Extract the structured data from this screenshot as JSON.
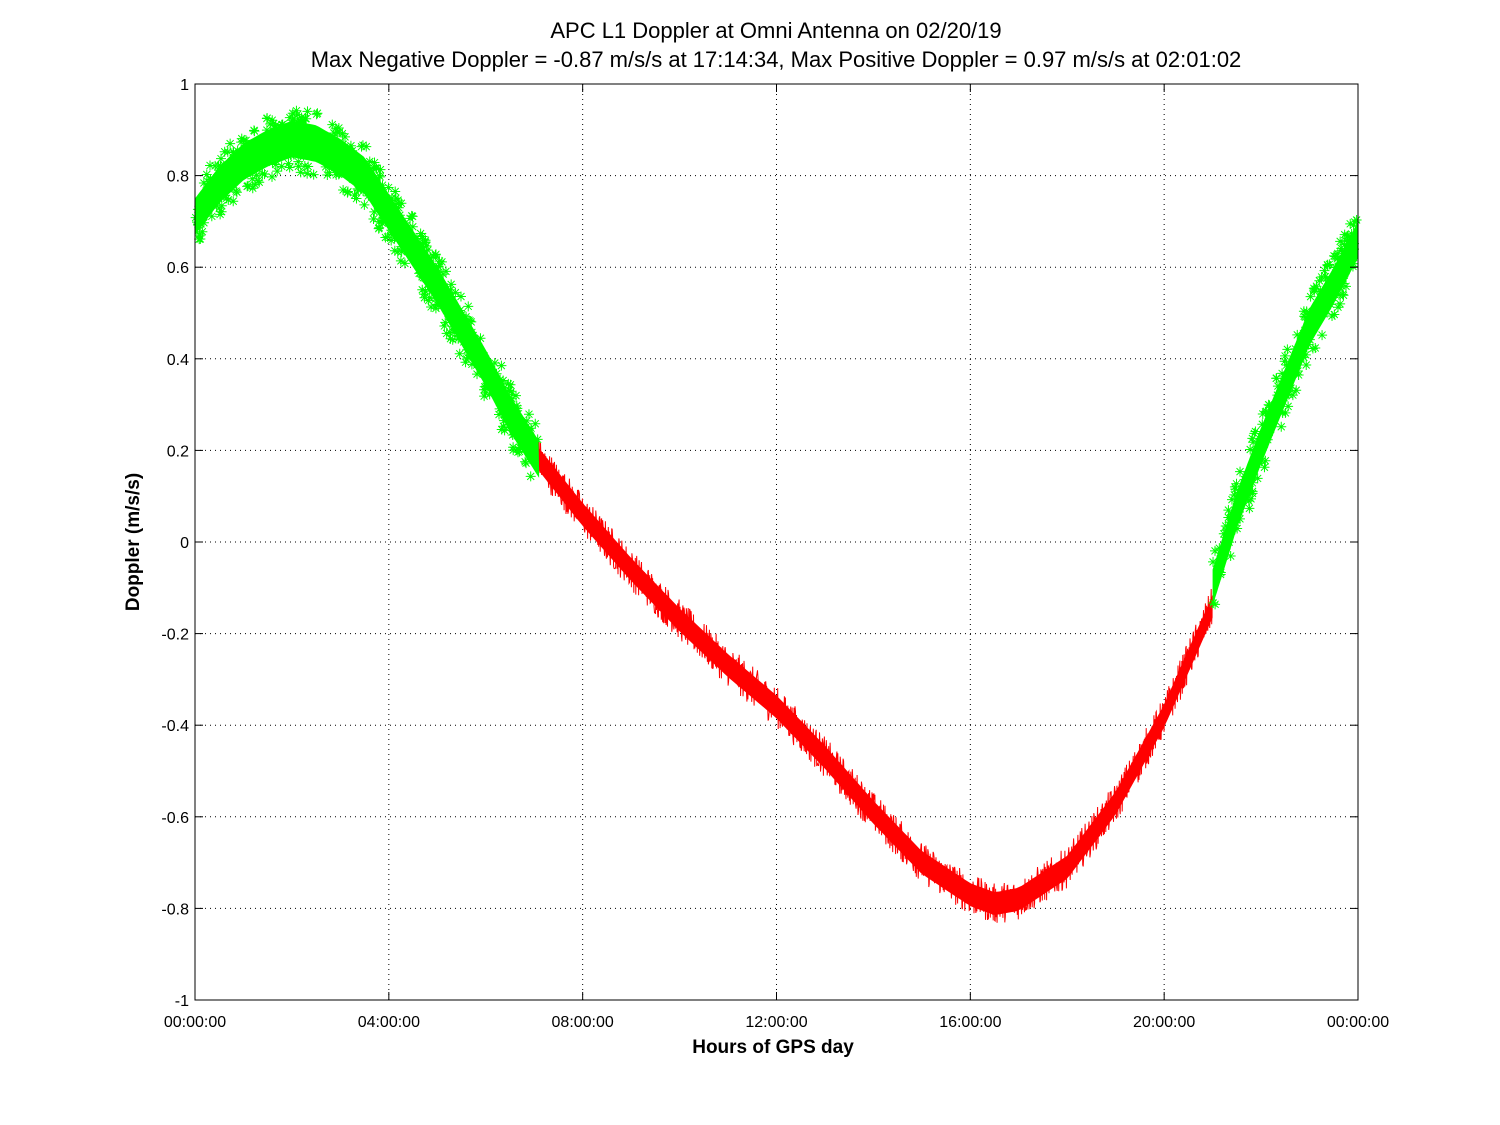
{
  "chart_data": {
    "type": "scatter",
    "title": "APC  L1 Doppler at Omni Antenna on 02/20/19",
    "subtitle": "Max Negative Doppler = -0.87 m/s/s  at 17:14:34,   Max Positive Doppler = 0.97 m/s/s  at 02:01:02",
    "xlabel": "Hours of GPS day",
    "ylabel": "Doppler (m/s/s)",
    "xlim": [
      0,
      24
    ],
    "ylim": [
      -1,
      1
    ],
    "grid": true,
    "x_ticks": [
      0,
      4,
      8,
      12,
      16,
      20,
      24
    ],
    "x_tick_labels": [
      "00:00:00",
      "04:00:00",
      "08:00:00",
      "12:00:00",
      "16:00:00",
      "20:00:00",
      "00:00:00"
    ],
    "y_ticks": [
      -1,
      -0.8,
      -0.6,
      -0.4,
      -0.2,
      0,
      0.2,
      0.4,
      0.6,
      0.8,
      1
    ],
    "y_tick_labels": [
      "-1",
      "-0.8",
      "-0.6",
      "-0.4",
      "-0.2",
      "0",
      "0.2",
      "0.4",
      "0.6",
      "0.8",
      "1"
    ],
    "series": [
      {
        "color": "#00ff00",
        "marker": "asterisk",
        "x": [
          0,
          0.5,
          1,
          1.5,
          2,
          2.5,
          3,
          3.5,
          4,
          4.5,
          5,
          5.5,
          6,
          6.5,
          7.1
        ],
        "y": [
          0.71,
          0.78,
          0.83,
          0.86,
          0.88,
          0.87,
          0.84,
          0.8,
          0.72,
          0.64,
          0.56,
          0.47,
          0.38,
          0.28,
          0.18
        ]
      },
      {
        "color": "#ff0000",
        "marker": "line",
        "x": [
          7.1,
          8,
          9,
          10,
          11,
          12,
          13,
          14,
          15,
          16,
          16.5,
          17,
          18,
          19,
          20,
          21
        ],
        "y": [
          0.18,
          0.06,
          -0.06,
          -0.17,
          -0.27,
          -0.36,
          -0.47,
          -0.59,
          -0.7,
          -0.77,
          -0.79,
          -0.78,
          -0.71,
          -0.57,
          -0.38,
          -0.14
        ]
      },
      {
        "color": "#00ff00",
        "marker": "asterisk",
        "x": [
          21,
          21.5,
          22,
          22.5,
          23,
          23.5,
          24
        ],
        "y": [
          -0.1,
          0.07,
          0.21,
          0.34,
          0.47,
          0.56,
          0.66
        ]
      }
    ]
  }
}
